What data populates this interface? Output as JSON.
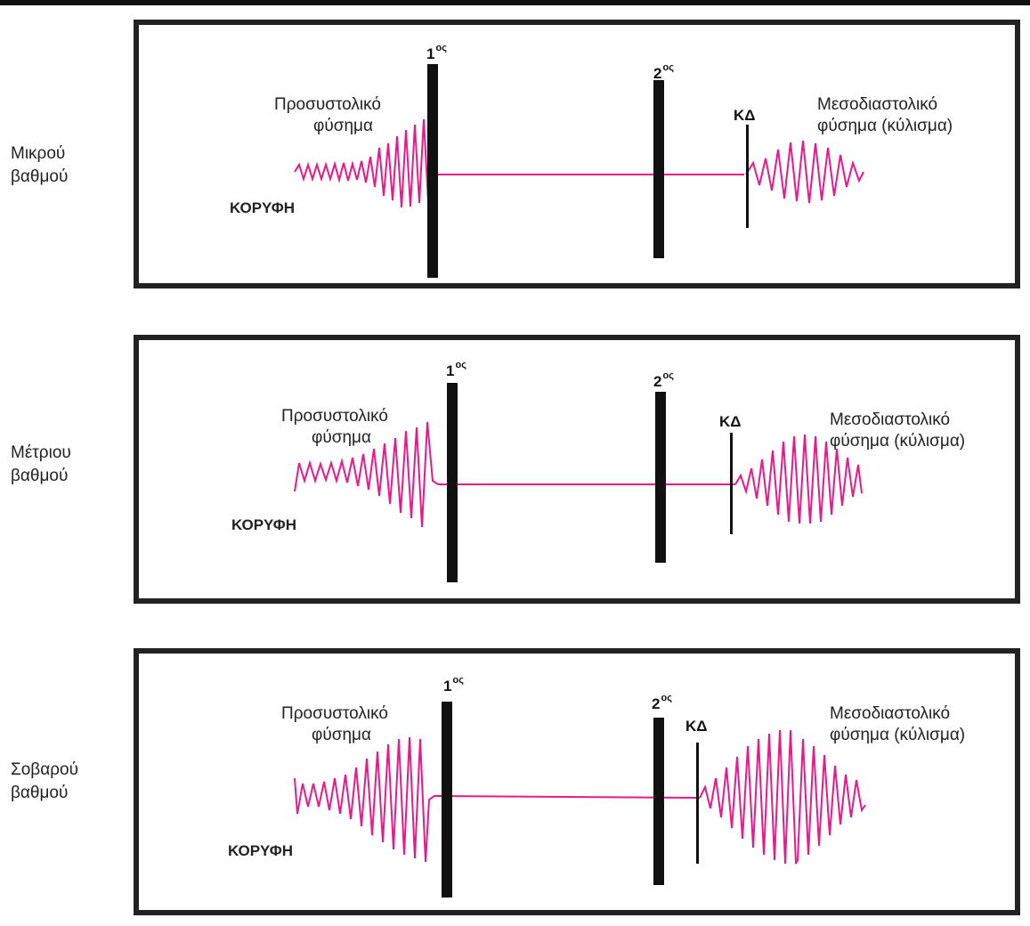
{
  "colors": {
    "murmur": "#e8198a",
    "bar": "#111111",
    "frame": "#222222"
  },
  "sound_label_base": "1",
  "sound_label_sup": "ος",
  "second_label_base": "2",
  "panels": [
    {
      "grade_line1": "Μικρού",
      "grade_line2": "βαθμού",
      "apex": "ΚΟΡΥΦΗ",
      "presystolic_line1": "Προσυστολικό",
      "presystolic_line2": "φύσημα",
      "od": "ΚΔ",
      "middiastolic_line1": "Μεσοδιαστολικό",
      "middiastolic_line2": "φύσημα (κύλισμα)"
    },
    {
      "grade_line1": "Μέτριου",
      "grade_line2": "βαθμού",
      "apex": "ΚΟΡΥΦΗ",
      "presystolic_line1": "Προσυστολικό",
      "presystolic_line2": "φύσημα",
      "od": "ΚΔ",
      "middiastolic_line1": "Μεσοδιαστολικό",
      "middiastolic_line2": "φύσημα (κύλισμα)"
    },
    {
      "grade_line1": "Σοβαρού",
      "grade_line2": "βαθμού",
      "apex": "ΚΟΡΥΦΗ",
      "presystolic_line1": "Προσυστολικό",
      "presystolic_line2": "φύσημα",
      "od": "ΚΔ",
      "middiastolic_line1": "Μεσοδιαστολικό",
      "middiastolic_line2": "φύσημα (κύλισμα)"
    }
  ]
}
